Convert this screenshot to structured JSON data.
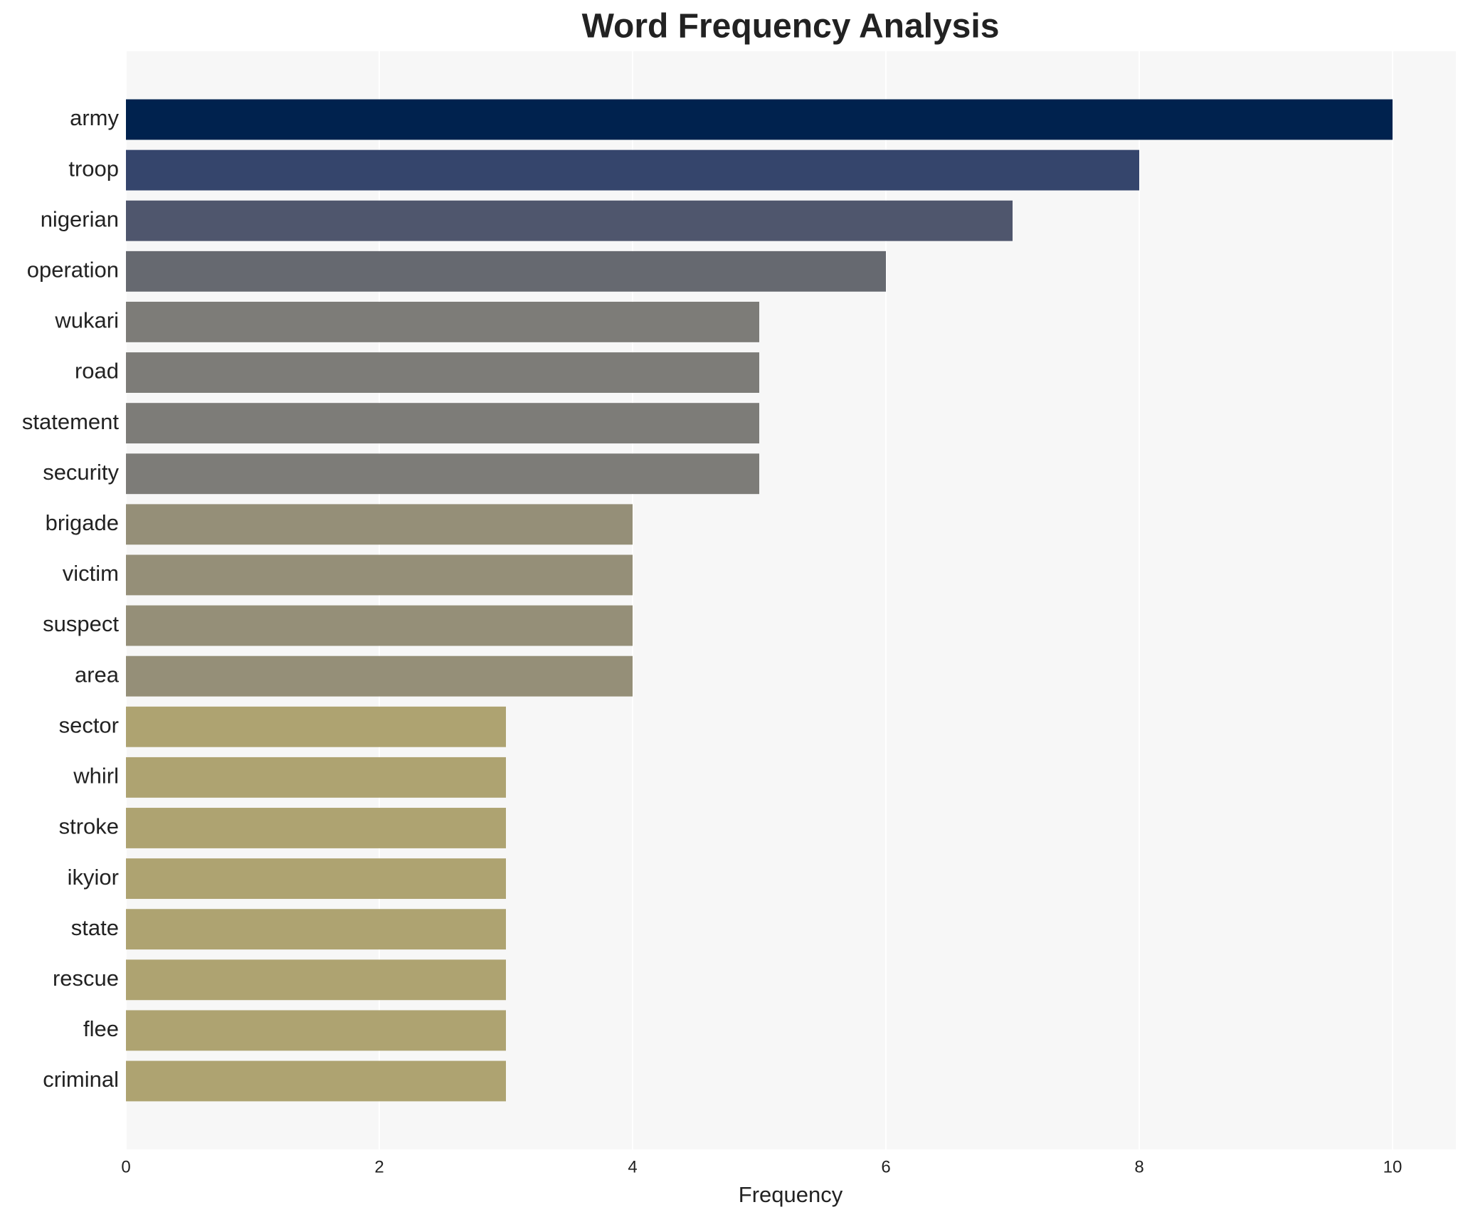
{
  "chart_data": {
    "type": "bar",
    "orientation": "horizontal",
    "title": "Word Frequency Analysis",
    "x_label": "Frequency",
    "categories": [
      "army",
      "troop",
      "nigerian",
      "operation",
      "wukari",
      "road",
      "statement",
      "security",
      "brigade",
      "victim",
      "suspect",
      "area",
      "sector",
      "whirl",
      "stroke",
      "ikyior",
      "state",
      "rescue",
      "flee",
      "criminal"
    ],
    "values": [
      10,
      8,
      7,
      6,
      5,
      5,
      5,
      5,
      4,
      4,
      4,
      4,
      3,
      3,
      3,
      3,
      3,
      3,
      3,
      3
    ],
    "colors": [
      "#00224e",
      "#35456c",
      "#4f566d",
      "#666970",
      "#7d7c78",
      "#7d7c78",
      "#7d7c78",
      "#7d7c78",
      "#958f78",
      "#958f78",
      "#958f78",
      "#958f78",
      "#aea371",
      "#aea371",
      "#aea371",
      "#aea371",
      "#aea371",
      "#aea371",
      "#aea371",
      "#aea371"
    ],
    "xlim": [
      0,
      10.5
    ],
    "xticks": [
      0,
      2,
      4,
      6,
      8,
      10
    ],
    "grid": true
  }
}
